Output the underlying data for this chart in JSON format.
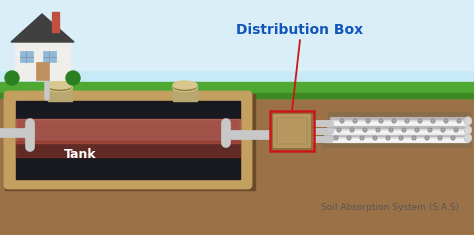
{
  "title": "Distribution Box",
  "subtitle": "Soil Absorption System (S.A.S)",
  "sky_top": "#b0ddf5",
  "sky_bottom": "#d8eef8",
  "grass_color": "#4ea832",
  "grass_dark": "#3d8a25",
  "soil_color": "#9b7248",
  "soil_mid": "#8a6238",
  "soil_dark": "#6b4a28",
  "tank_wall_color": "#c4a060",
  "tank_inner_top": "#b05840",
  "tank_inner_mid": "#803820",
  "tank_inner_bottom": "#181820",
  "tank_water": "#d06858",
  "pipe_gray": "#c8c8c8",
  "pipe_shadow": "#a0a0a0",
  "dbox_color": "#b89860",
  "dbox_shadow": "#907040",
  "cap_top": "#d8c890",
  "cap_body": "#b8a870",
  "cap_dark": "#907840",
  "label_color": "#1155bb",
  "arrow_color": "#cc1515",
  "text_dark": "#333333",
  "text_gray": "#555555",
  "house_wall": "#f0eeea",
  "house_roof": "#404040",
  "house_door": "#c09060",
  "house_win": "#90b8d8",
  "chimney_color": "#c05040",
  "bush_color": "#2a8020"
}
